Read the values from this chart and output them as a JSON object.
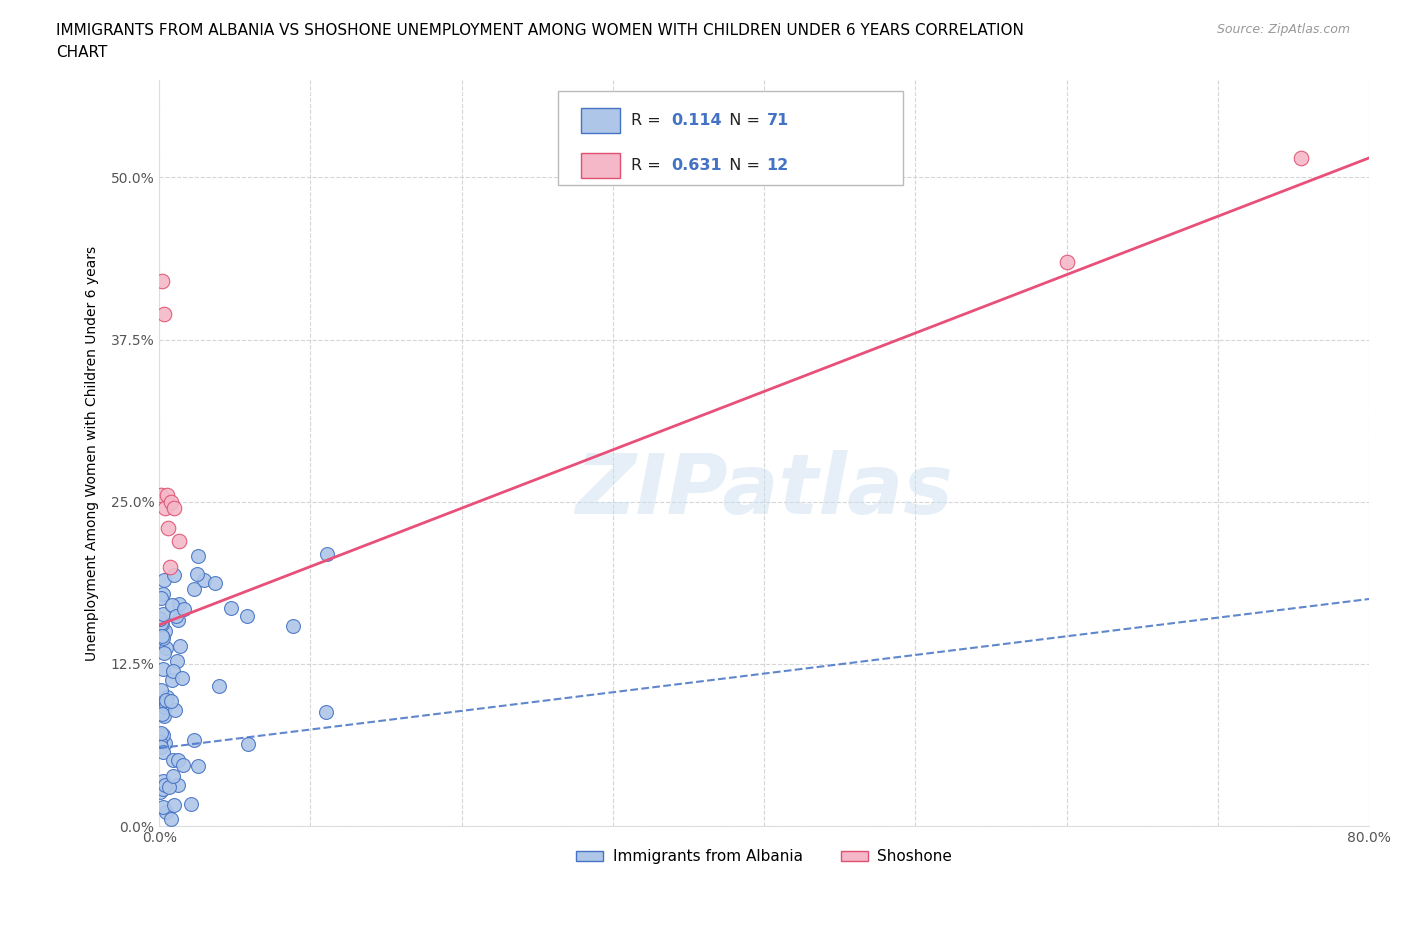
{
  "title_line1": "IMMIGRANTS FROM ALBANIA VS SHOSHONE UNEMPLOYMENT AMONG WOMEN WITH CHILDREN UNDER 6 YEARS CORRELATION",
  "title_line2": "CHART",
  "source_text": "Source: ZipAtlas.com",
  "ylabel": "Unemployment Among Women with Children Under 6 years",
  "xlim": [
    0.0,
    0.8
  ],
  "ylim": [
    0.0,
    0.575
  ],
  "yticks": [
    0.0,
    0.125,
    0.25,
    0.375,
    0.5
  ],
  "albania_color": "#aec6e8",
  "albania_edge_color": "#4472c4",
  "shoshone_color": "#f4b8c8",
  "shoshone_edge_color": "#e05070",
  "albania_line_color": "#4472c4",
  "shoshone_line_color": "#e8507a",
  "albania_R": 0.114,
  "albania_N": 71,
  "shoshone_R": 0.631,
  "shoshone_N": 12,
  "legend_label_albania": "Immigrants from Albania",
  "legend_label_shoshone": "Shoshone",
  "watermark": "ZIPatlas",
  "grid_color": "#cccccc",
  "shoshone_x": [
    0.001,
    0.002,
    0.003,
    0.004,
    0.005,
    0.006,
    0.007,
    0.008,
    0.01,
    0.013,
    0.6,
    0.755
  ],
  "shoshone_y": [
    0.255,
    0.42,
    0.395,
    0.245,
    0.255,
    0.23,
    0.2,
    0.25,
    0.245,
    0.22,
    0.435,
    0.515
  ],
  "shoshone_line_x0": 0.0,
  "shoshone_line_y0": 0.155,
  "shoshone_line_x1": 0.8,
  "shoshone_line_y1": 0.515,
  "albania_line_x0": 0.0,
  "albania_line_y0": 0.06,
  "albania_line_x1": 0.8,
  "albania_line_y1": 0.175
}
